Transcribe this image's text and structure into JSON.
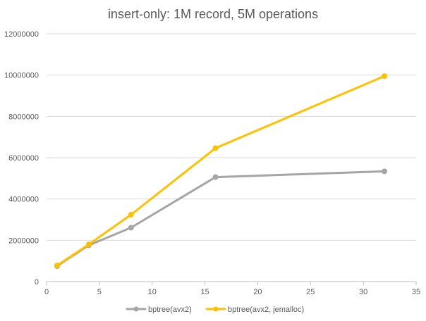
{
  "chart_data": {
    "type": "line",
    "title": "insert-only: 1M record, 5M operations",
    "xlabel": "",
    "ylabel": "",
    "xlim": [
      0,
      35
    ],
    "ylim": [
      0,
      12000000
    ],
    "x_ticks": [
      0,
      5,
      10,
      15,
      20,
      25,
      30,
      35
    ],
    "y_ticks": [
      0,
      2000000,
      4000000,
      6000000,
      8000000,
      10000000,
      12000000
    ],
    "x_tick_labels": [
      "0",
      "5",
      "10",
      "15",
      "20",
      "25",
      "30",
      "35"
    ],
    "y_tick_labels": [
      "0",
      "2000000",
      "4000000",
      "6000000",
      "8000000",
      "10000000",
      "12000000"
    ],
    "grid": "horizontal",
    "legend_position": "bottom",
    "series": [
      {
        "name": "bptree(avx2)",
        "color": "#a5a5a5",
        "x": [
          1,
          4,
          8,
          16,
          32
        ],
        "y": [
          750000,
          1760000,
          2610000,
          5060000,
          5340000
        ]
      },
      {
        "name": "bptree(avx2, jemalloc)",
        "color": "#ffc000",
        "x": [
          1,
          4,
          8,
          16,
          32
        ],
        "y": [
          780000,
          1800000,
          3240000,
          6460000,
          9950000
        ]
      }
    ]
  }
}
